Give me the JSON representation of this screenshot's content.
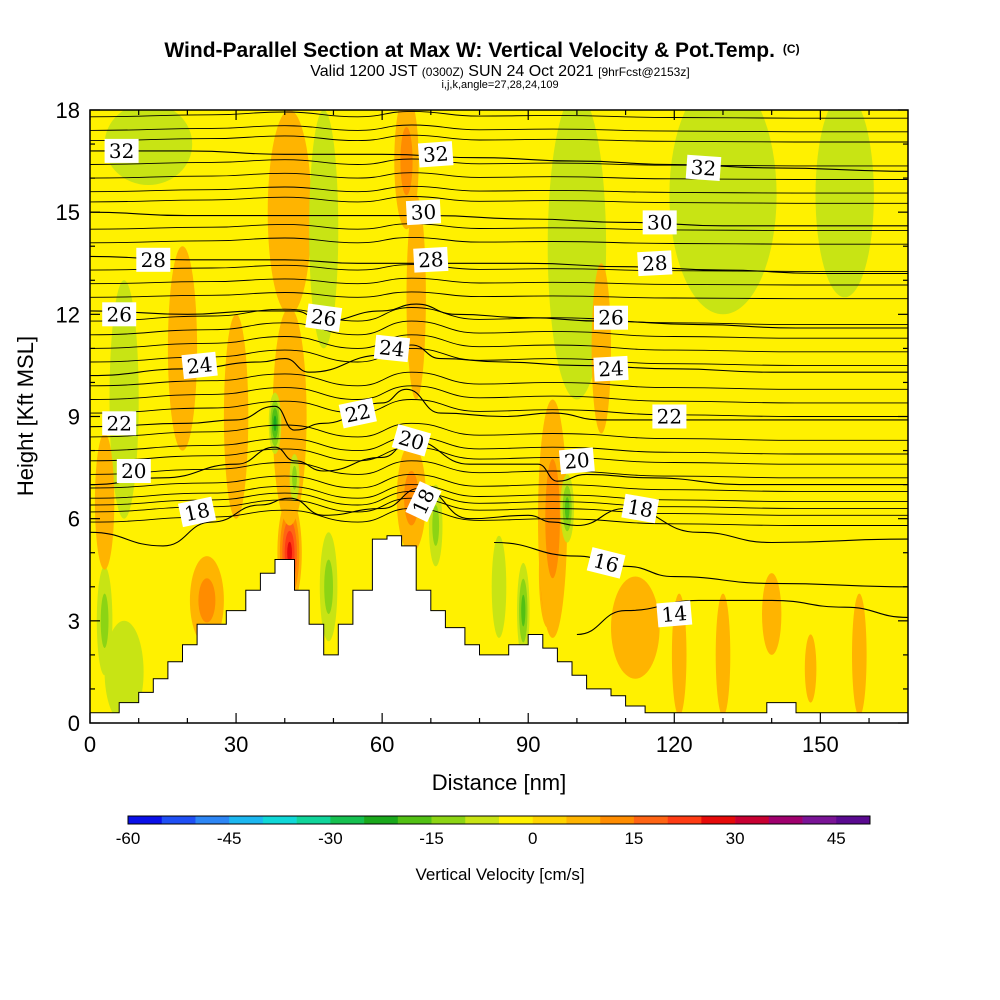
{
  "chart_data": {
    "type": "heatmap",
    "title": "Wind-Parallel Section at Max W: Vertical Velocity & Pot.Temp.",
    "title_mark": "(C)",
    "subtitle_main_a": "Valid 1200 JST",
    "subtitle_small_a": "(0300Z)",
    "subtitle_main_b": "SUN 24 Oct 2021",
    "subtitle_small_b": "[9hrFcst@2153z]",
    "subtitle_line3": "i,j,k,angle=27,28,24,109",
    "xlabel": "Distance [nm]",
    "ylabel": "Height [Kft MSL]",
    "xlim": [
      0,
      168
    ],
    "ylim": [
      0,
      18
    ],
    "x_ticks": [
      "0",
      "30",
      "60",
      "90",
      "120",
      "150"
    ],
    "y_ticks": [
      "0",
      "3",
      "6",
      "9",
      "12",
      "15",
      "18"
    ],
    "colorbar": {
      "label": "Vertical Velocity [cm/s]",
      "range": [
        -60,
        50
      ],
      "step": 5,
      "tick_labels": [
        "-60",
        "-45",
        "-30",
        "-15",
        "0",
        "15",
        "30",
        "45"
      ],
      "colors": [
        "#0a10e8",
        "#1f4ff5",
        "#2d86f5",
        "#1cb7f0",
        "#10d8d8",
        "#10d49a",
        "#16c050",
        "#1aa81c",
        "#52c014",
        "#8cd414",
        "#c8e414",
        "#fff100",
        "#ffd400",
        "#ffb400",
        "#ff8c00",
        "#ff6414",
        "#ff3c14",
        "#e60a0a",
        "#c80032",
        "#a0006e",
        "#7a1496",
        "#5a0a90"
      ]
    },
    "terrain": [
      [
        0,
        0.3
      ],
      [
        6,
        0.3
      ],
      [
        6,
        0.6
      ],
      [
        10,
        0.6
      ],
      [
        10,
        0.9
      ],
      [
        13,
        0.9
      ],
      [
        13,
        1.3
      ],
      [
        16,
        1.3
      ],
      [
        16,
        1.8
      ],
      [
        19,
        1.8
      ],
      [
        19,
        2.3
      ],
      [
        22,
        2.3
      ],
      [
        22,
        2.9
      ],
      [
        28,
        2.9
      ],
      [
        28,
        3.3
      ],
      [
        32,
        3.3
      ],
      [
        32,
        3.9
      ],
      [
        35,
        3.9
      ],
      [
        35,
        4.4
      ],
      [
        38,
        4.4
      ],
      [
        38,
        4.8
      ],
      [
        42,
        4.8
      ],
      [
        42,
        3.9
      ],
      [
        45,
        3.9
      ],
      [
        45,
        2.9
      ],
      [
        48,
        2.9
      ],
      [
        48,
        2.0
      ],
      [
        51,
        2.0
      ],
      [
        51,
        2.9
      ],
      [
        54,
        2.9
      ],
      [
        54,
        3.9
      ],
      [
        58,
        3.9
      ],
      [
        58,
        5.4
      ],
      [
        61,
        5.4
      ],
      [
        61,
        5.5
      ],
      [
        64,
        5.5
      ],
      [
        64,
        5.2
      ],
      [
        67,
        5.2
      ],
      [
        67,
        3.9
      ],
      [
        70,
        3.9
      ],
      [
        70,
        3.3
      ],
      [
        73,
        3.3
      ],
      [
        73,
        2.8
      ],
      [
        77,
        2.8
      ],
      [
        77,
        2.3
      ],
      [
        80,
        2.3
      ],
      [
        80,
        2.0
      ],
      [
        86,
        2.0
      ],
      [
        86,
        2.3
      ],
      [
        90,
        2.3
      ],
      [
        90,
        2.6
      ],
      [
        93,
        2.6
      ],
      [
        93,
        2.2
      ],
      [
        96,
        2.2
      ],
      [
        96,
        1.8
      ],
      [
        99,
        1.8
      ],
      [
        99,
        1.4
      ],
      [
        102,
        1.4
      ],
      [
        102,
        1.0
      ],
      [
        107,
        1.0
      ],
      [
        107,
        0.8
      ],
      [
        110,
        0.8
      ],
      [
        110,
        0.5
      ],
      [
        114,
        0.5
      ],
      [
        114,
        0.3
      ],
      [
        139,
        0.3
      ],
      [
        139,
        0.6
      ],
      [
        145,
        0.6
      ],
      [
        145,
        0.3
      ],
      [
        168,
        0.3
      ]
    ],
    "w_blobs": [
      {
        "x": 41,
        "y": 5.0,
        "rx": 2.5,
        "ry": 1.6,
        "w": 25
      },
      {
        "x": 41,
        "y": 9.0,
        "rx": 3.5,
        "ry": 3.2,
        "w": 6
      },
      {
        "x": 41,
        "y": 15.0,
        "rx": 4.5,
        "ry": 3.0,
        "w": 5
      },
      {
        "x": 38,
        "y": 8.8,
        "rx": 1.3,
        "ry": 0.9,
        "w": -20
      },
      {
        "x": 42,
        "y": 7.2,
        "rx": 1.0,
        "ry": 0.7,
        "w": -12
      },
      {
        "x": 94,
        "y": 4.4,
        "rx": 1.8,
        "ry": 1.6,
        "w": 32
      },
      {
        "x": 95,
        "y": 6.0,
        "rx": 3.0,
        "ry": 3.5,
        "w": 10
      },
      {
        "x": 89,
        "y": 3.3,
        "rx": 1.3,
        "ry": 1.4,
        "w": -15
      },
      {
        "x": 98,
        "y": 6.3,
        "rx": 1.4,
        "ry": 1.0,
        "w": -15
      },
      {
        "x": 66,
        "y": 6.6,
        "rx": 3.0,
        "ry": 1.6,
        "w": 14
      },
      {
        "x": 65,
        "y": 16.5,
        "rx": 2.5,
        "ry": 2.0,
        "w": 12
      },
      {
        "x": 67,
        "y": 12.5,
        "rx": 2.0,
        "ry": 3.0,
        "w": 4
      },
      {
        "x": 71,
        "y": 5.8,
        "rx": 1.4,
        "ry": 1.2,
        "w": -14
      },
      {
        "x": 49,
        "y": 4.0,
        "rx": 1.8,
        "ry": 1.6,
        "w": -10
      },
      {
        "x": 84,
        "y": 4.0,
        "rx": 1.5,
        "ry": 1.5,
        "w": -8
      },
      {
        "x": 3,
        "y": 3.0,
        "rx": 1.6,
        "ry": 1.6,
        "w": -12
      },
      {
        "x": 24,
        "y": 3.6,
        "rx": 3.5,
        "ry": 1.3,
        "w": 12
      },
      {
        "x": 19,
        "y": 11.0,
        "rx": 3.0,
        "ry": 3.0,
        "w": 4
      },
      {
        "x": 30,
        "y": 9.0,
        "rx": 2.5,
        "ry": 3.0,
        "w": 3
      },
      {
        "x": 130,
        "y": 15.5,
        "rx": 11,
        "ry": 3.5,
        "w": -5
      },
      {
        "x": 155,
        "y": 15.5,
        "rx": 6,
        "ry": 3.0,
        "w": -4
      },
      {
        "x": 100,
        "y": 14.0,
        "rx": 6,
        "ry": 4.5,
        "w": -4
      },
      {
        "x": 48,
        "y": 14.5,
        "rx": 3,
        "ry": 3.5,
        "w": -4
      },
      {
        "x": 7,
        "y": 9.5,
        "rx": 3,
        "ry": 3.5,
        "w": -3
      },
      {
        "x": 12,
        "y": 17.0,
        "rx": 9,
        "ry": 1.2,
        "w": -3
      },
      {
        "x": 105,
        "y": 11.0,
        "rx": 2.0,
        "ry": 2.5,
        "w": 5
      },
      {
        "x": 121,
        "y": 2.0,
        "rx": 1.5,
        "ry": 1.8,
        "w": 8
      },
      {
        "x": 130,
        "y": 2.0,
        "rx": 1.5,
        "ry": 1.8,
        "w": 7
      },
      {
        "x": 158,
        "y": 2.0,
        "rx": 1.5,
        "ry": 1.8,
        "w": 7
      },
      {
        "x": 148,
        "y": 1.6,
        "rx": 1.2,
        "ry": 1.0,
        "w": 6
      },
      {
        "x": 140,
        "y": 3.2,
        "rx": 2.0,
        "ry": 1.2,
        "w": 5
      },
      {
        "x": 112,
        "y": 2.8,
        "rx": 5,
        "ry": 1.5,
        "w": 3
      },
      {
        "x": 7,
        "y": 1.5,
        "rx": 4,
        "ry": 1.5,
        "w": -3
      },
      {
        "x": 3,
        "y": 6.5,
        "rx": 2,
        "ry": 2.0,
        "w": 3
      }
    ],
    "theta_levels": [
      {
        "theta": 14,
        "x": [
          100,
          110,
          125,
          140,
          155,
          168
        ],
        "y": [
          2.6,
          3.3,
          3.6,
          3.6,
          3.4,
          3.1
        ]
      },
      {
        "theta": 16,
        "x": [
          83,
          100,
          110,
          120,
          140,
          168
        ],
        "y": [
          5.3,
          4.9,
          4.6,
          4.3,
          4.1,
          4.0
        ]
      },
      {
        "theta": 18,
        "x": [
          0,
          15,
          25,
          35,
          41,
          48,
          60,
          68,
          78,
          90,
          95,
          100,
          110,
          125,
          140,
          168
        ],
        "y": [
          5.6,
          5.2,
          5.9,
          6.4,
          6.6,
          6.1,
          6.3,
          6.9,
          6.0,
          6.1,
          5.9,
          5.8,
          6.3,
          5.6,
          5.3,
          5.4
        ]
      },
      {
        "theta": 20,
        "x": [
          0,
          15,
          30,
          38,
          42,
          48,
          60,
          66,
          78,
          92,
          96,
          102,
          115,
          135,
          168
        ],
        "y": [
          7.0,
          7.2,
          7.6,
          8.1,
          7.7,
          7.4,
          7.8,
          8.3,
          7.6,
          7.6,
          7.1,
          7.3,
          7.2,
          7.0,
          7.0
        ]
      },
      {
        "theta": 22,
        "x": [
          0,
          20,
          30,
          38,
          42,
          48,
          60,
          65,
          72,
          85,
          95,
          105,
          120,
          140,
          168
        ],
        "y": [
          8.7,
          8.8,
          8.9,
          9.3,
          8.6,
          8.8,
          9.4,
          9.8,
          9.1,
          9.0,
          9.1,
          8.9,
          8.9,
          8.9,
          8.9
        ]
      },
      {
        "theta": 24,
        "x": [
          0,
          20,
          35,
          40,
          45,
          60,
          66,
          72,
          85,
          100,
          120,
          140,
          168
        ],
        "y": [
          10.2,
          10.4,
          10.6,
          10.7,
          10.3,
          10.8,
          11.1,
          10.7,
          10.6,
          10.5,
          10.4,
          10.3,
          10.3
        ]
      },
      {
        "theta": 26,
        "x": [
          0,
          20,
          35,
          42,
          48,
          60,
          67,
          75,
          90,
          105,
          125,
          145,
          168
        ],
        "y": [
          12.1,
          12.0,
          12.1,
          12.1,
          11.8,
          12.1,
          12.3,
          12.0,
          11.9,
          11.8,
          11.7,
          11.6,
          11.6
        ]
      },
      {
        "theta": 28,
        "x": [
          0,
          20,
          40,
          55,
          70,
          90,
          110,
          130,
          150,
          168
        ],
        "y": [
          13.7,
          13.6,
          13.6,
          13.5,
          13.5,
          13.5,
          13.4,
          13.3,
          13.2,
          13.2
        ]
      },
      {
        "theta": 30,
        "x": [
          0,
          20,
          40,
          55,
          70,
          90,
          110,
          130,
          150,
          168
        ],
        "y": [
          15.0,
          14.9,
          14.9,
          14.9,
          14.9,
          14.8,
          14.7,
          14.6,
          14.6,
          14.6
        ]
      },
      {
        "theta": 32,
        "x": [
          0,
          20,
          40,
          60,
          80,
          100,
          120,
          140,
          168
        ],
        "y": [
          16.8,
          16.8,
          16.7,
          16.7,
          16.6,
          16.5,
          16.4,
          16.3,
          16.2
        ]
      }
    ],
    "theta_minor": [
      [
        5.9,
        6.2,
        6.4,
        6.6,
        6.9,
        7.3,
        7.7,
        8.0,
        8.4,
        9.1,
        9.5,
        9.9,
        10.6,
        11.0,
        11.4,
        11.8,
        12.5,
        12.9,
        13.3,
        14.1,
        14.5,
        15.3,
        15.6,
        16.0,
        16.4,
        17.1,
        17.4,
        17.8
      ]
    ],
    "contour_labels": [
      {
        "text": "32",
        "x": 6.5,
        "y": 16.8,
        "angle": 0
      },
      {
        "text": "32",
        "x": 71,
        "y": 16.7,
        "angle": -4
      },
      {
        "text": "32",
        "x": 126,
        "y": 16.3,
        "angle": 4
      },
      {
        "text": "30",
        "x": 68.5,
        "y": 15.0,
        "angle": -3
      },
      {
        "text": "30",
        "x": 117,
        "y": 14.7,
        "angle": 0
      },
      {
        "text": "28",
        "x": 13,
        "y": 13.6,
        "angle": 0
      },
      {
        "text": "28",
        "x": 70,
        "y": 13.6,
        "angle": -3
      },
      {
        "text": "28",
        "x": 116,
        "y": 13.5,
        "angle": -3
      },
      {
        "text": "26",
        "x": 6,
        "y": 12.0,
        "angle": 0
      },
      {
        "text": "26",
        "x": 48,
        "y": 11.9,
        "angle": 8
      },
      {
        "text": "26",
        "x": 107,
        "y": 11.9,
        "angle": 0
      },
      {
        "text": "24",
        "x": 22.5,
        "y": 10.5,
        "angle": -6
      },
      {
        "text": "24",
        "x": 62,
        "y": 11.0,
        "angle": 6
      },
      {
        "text": "24",
        "x": 107,
        "y": 10.4,
        "angle": -3
      },
      {
        "text": "22",
        "x": 6,
        "y": 8.8,
        "angle": 0
      },
      {
        "text": "22",
        "x": 55,
        "y": 9.1,
        "angle": -12
      },
      {
        "text": "22",
        "x": 119,
        "y": 9.0,
        "angle": 0
      },
      {
        "text": "20",
        "x": 9,
        "y": 7.4,
        "angle": 0
      },
      {
        "text": "20",
        "x": 66,
        "y": 8.3,
        "angle": 16
      },
      {
        "text": "20",
        "x": 100,
        "y": 7.7,
        "angle": -5
      },
      {
        "text": "18",
        "x": 22,
        "y": 6.2,
        "angle": -12
      },
      {
        "text": "18",
        "x": 68.5,
        "y": 6.5,
        "angle": -65
      },
      {
        "text": "18",
        "x": 113,
        "y": 6.3,
        "angle": 10
      },
      {
        "text": "16",
        "x": 106,
        "y": 4.7,
        "angle": 14
      },
      {
        "text": "14",
        "x": 120,
        "y": 3.2,
        "angle": -5
      }
    ]
  }
}
